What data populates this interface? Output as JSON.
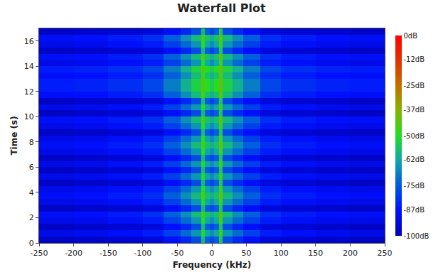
{
  "chart_data": {
    "type": "heatmap",
    "title": "Waterfall Plot",
    "x_label": "Frequency (kHz)",
    "y_label": "Time (s)",
    "x_bins": [
      -250,
      -200,
      -150,
      -100,
      -70,
      -45,
      -30,
      -15,
      -10,
      -3,
      3,
      10,
      15,
      30,
      45,
      70,
      100,
      150,
      200,
      250
    ],
    "y_bins": [
      0,
      0.5,
      1,
      1.5,
      2,
      2.5,
      3,
      3.5,
      4,
      4.5,
      5,
      5.5,
      6,
      6.5,
      7,
      7.5,
      8,
      8.5,
      9,
      9.5,
      10,
      10.5,
      11,
      11.5,
      12,
      12.5,
      13,
      13.5,
      14,
      14.5,
      15,
      15.5,
      16,
      16.5,
      17
    ],
    "z": [
      [
        -97,
        -96,
        -95,
        -93,
        -88,
        -83,
        -77,
        -58,
        -74,
        -78,
        -74,
        -55,
        -77,
        -83,
        -88,
        -93,
        -95,
        -96,
        -97
      ],
      [
        -91,
        -90,
        -88,
        -85,
        -79,
        -72,
        -65,
        -50,
        -62,
        -66,
        -62,
        -47,
        -65,
        -72,
        -79,
        -85,
        -88,
        -90,
        -91
      ],
      [
        -97,
        -96,
        -95,
        -93,
        -88,
        -83,
        -77,
        -58,
        -74,
        -78,
        -74,
        -55,
        -77,
        -83,
        -88,
        -93,
        -95,
        -96,
        -97
      ],
      [
        -91,
        -90,
        -88,
        -85,
        -79,
        -72,
        -65,
        -50,
        -62,
        -66,
        -62,
        -47,
        -65,
        -72,
        -79,
        -85,
        -88,
        -90,
        -91
      ],
      [
        -88,
        -87,
        -85,
        -82,
        -74,
        -66,
        -58,
        -46,
        -56,
        -60,
        -56,
        -43,
        -58,
        -66,
        -74,
        -82,
        -85,
        -87,
        -88
      ],
      [
        -97,
        -96,
        -95,
        -93,
        -88,
        -83,
        -77,
        -58,
        -74,
        -78,
        -74,
        -55,
        -77,
        -83,
        -88,
        -93,
        -95,
        -96,
        -97
      ],
      [
        -91,
        -90,
        -88,
        -85,
        -79,
        -72,
        -65,
        -50,
        -62,
        -66,
        -62,
        -47,
        -65,
        -72,
        -79,
        -85,
        -88,
        -90,
        -91
      ],
      [
        -88,
        -87,
        -85,
        -82,
        -74,
        -66,
        -58,
        -46,
        -56,
        -60,
        -56,
        -43,
        -58,
        -66,
        -74,
        -82,
        -85,
        -87,
        -88
      ],
      [
        -91,
        -90,
        -88,
        -85,
        -79,
        -72,
        -65,
        -50,
        -62,
        -66,
        -62,
        -47,
        -65,
        -72,
        -79,
        -85,
        -88,
        -90,
        -91
      ],
      [
        -97,
        -96,
        -95,
        -93,
        -88,
        -83,
        -77,
        -58,
        -74,
        -78,
        -74,
        -55,
        -77,
        -83,
        -88,
        -93,
        -95,
        -96,
        -97
      ],
      [
        -91,
        -90,
        -88,
        -85,
        -79,
        -72,
        -65,
        -50,
        -62,
        -66,
        -62,
        -47,
        -65,
        -72,
        -79,
        -85,
        -88,
        -90,
        -91
      ],
      [
        -97,
        -96,
        -95,
        -93,
        -88,
        -83,
        -77,
        -58,
        -74,
        -78,
        -74,
        -55,
        -77,
        -83,
        -88,
        -93,
        -95,
        -96,
        -97
      ],
      [
        -91,
        -90,
        -88,
        -85,
        -79,
        -72,
        -65,
        -50,
        -62,
        -66,
        -62,
        -47,
        -65,
        -72,
        -79,
        -85,
        -88,
        -90,
        -91
      ],
      [
        -97,
        -96,
        -95,
        -93,
        -88,
        -83,
        -77,
        -58,
        -74,
        -78,
        -74,
        -55,
        -77,
        -83,
        -88,
        -93,
        -95,
        -96,
        -97
      ],
      [
        -91,
        -90,
        -88,
        -85,
        -79,
        -72,
        -65,
        -50,
        -62,
        -66,
        -62,
        -47,
        -65,
        -72,
        -79,
        -85,
        -88,
        -90,
        -91
      ],
      [
        -88,
        -87,
        -85,
        -82,
        -74,
        -66,
        -58,
        -46,
        -56,
        -60,
        -56,
        -43,
        -58,
        -66,
        -74,
        -82,
        -85,
        -87,
        -88
      ],
      [
        -91,
        -90,
        -88,
        -85,
        -79,
        -72,
        -65,
        -50,
        -62,
        -66,
        -62,
        -47,
        -65,
        -72,
        -79,
        -85,
        -88,
        -90,
        -91
      ],
      [
        -97,
        -96,
        -95,
        -93,
        -88,
        -83,
        -77,
        -58,
        -74,
        -78,
        -74,
        -55,
        -77,
        -83,
        -88,
        -93,
        -95,
        -96,
        -97
      ],
      [
        -91,
        -90,
        -88,
        -85,
        -79,
        -72,
        -65,
        -50,
        -62,
        -66,
        -62,
        -47,
        -65,
        -72,
        -79,
        -85,
        -88,
        -90,
        -91
      ],
      [
        -88,
        -87,
        -85,
        -82,
        -74,
        -66,
        -58,
        -46,
        -56,
        -60,
        -56,
        -43,
        -58,
        -66,
        -74,
        -82,
        -85,
        -87,
        -88
      ],
      [
        -97,
        -96,
        -95,
        -93,
        -88,
        -83,
        -77,
        -58,
        -74,
        -78,
        -74,
        -55,
        -77,
        -83,
        -88,
        -93,
        -95,
        -96,
        -97
      ],
      [
        -91,
        -90,
        -88,
        -85,
        -79,
        -72,
        -65,
        -50,
        -62,
        -66,
        -62,
        -47,
        -65,
        -72,
        -79,
        -85,
        -88,
        -90,
        -91
      ],
      [
        -97,
        -96,
        -95,
        -93,
        -88,
        -83,
        -77,
        -58,
        -74,
        -78,
        -74,
        -55,
        -77,
        -83,
        -88,
        -93,
        -95,
        -96,
        -97
      ],
      [
        -88,
        -87,
        -85,
        -82,
        -74,
        -66,
        -58,
        -46,
        -56,
        -60,
        -56,
        -43,
        -58,
        -66,
        -74,
        -82,
        -85,
        -87,
        -88
      ],
      [
        -85,
        -84,
        -82,
        -78,
        -69,
        -60,
        -53,
        -44,
        -50,
        -54,
        -50,
        -41,
        -53,
        -60,
        -69,
        -78,
        -82,
        -84,
        -85
      ],
      [
        -85,
        -84,
        -82,
        -78,
        -69,
        -60,
        -53,
        -44,
        -50,
        -54,
        -50,
        -41,
        -53,
        -60,
        -69,
        -78,
        -82,
        -84,
        -85
      ],
      [
        -88,
        -87,
        -85,
        -82,
        -74,
        -66,
        -58,
        -46,
        -56,
        -60,
        -56,
        -43,
        -58,
        -66,
        -74,
        -82,
        -85,
        -87,
        -88
      ],
      [
        -85,
        -84,
        -82,
        -78,
        -69,
        -60,
        -53,
        -44,
        -50,
        -54,
        -50,
        -41,
        -53,
        -60,
        -69,
        -78,
        -82,
        -84,
        -85
      ],
      [
        -91,
        -90,
        -88,
        -85,
        -79,
        -72,
        -65,
        -50,
        -62,
        -66,
        -62,
        -47,
        -65,
        -72,
        -79,
        -85,
        -88,
        -90,
        -91
      ],
      [
        -88,
        -87,
        -85,
        -82,
        -74,
        -66,
        -58,
        -46,
        -56,
        -60,
        -56,
        -43,
        -58,
        -66,
        -74,
        -82,
        -85,
        -87,
        -88
      ],
      [
        -97,
        -96,
        -95,
        -93,
        -88,
        -83,
        -77,
        -58,
        -74,
        -78,
        -74,
        -55,
        -77,
        -83,
        -88,
        -93,
        -95,
        -96,
        -97
      ],
      [
        -91,
        -90,
        -88,
        -85,
        -79,
        -72,
        -65,
        -50,
        -62,
        -66,
        -62,
        -47,
        -65,
        -72,
        -79,
        -85,
        -88,
        -90,
        -91
      ],
      [
        -88,
        -87,
        -85,
        -82,
        -74,
        -66,
        -58,
        -46,
        -56,
        -60,
        -56,
        -43,
        -58,
        -66,
        -74,
        -82,
        -85,
        -87,
        -88
      ],
      [
        -97,
        -96,
        -95,
        -93,
        -88,
        -83,
        -77,
        -58,
        -74,
        -78,
        -74,
        -55,
        -77,
        -83,
        -88,
        -93,
        -95,
        -96,
        -97
      ]
    ],
    "xlim": [
      -250,
      250
    ],
    "ylim": [
      0,
      17
    ],
    "xticks": [
      -250,
      -200,
      -150,
      -100,
      -50,
      0,
      50,
      100,
      150,
      200,
      250
    ],
    "yticks": [
      0,
      2,
      4,
      6,
      8,
      10,
      12,
      14,
      16
    ],
    "colorbar_range": [
      -100,
      0
    ],
    "colorbar_ticks": [
      {
        "value": 0,
        "label": "0dB"
      },
      {
        "value": -12,
        "label": "-12dB"
      },
      {
        "value": -25,
        "label": "-25dB"
      },
      {
        "value": -37,
        "label": "-37dB"
      },
      {
        "value": -50,
        "label": "-50dB"
      },
      {
        "value": -62,
        "label": "-62dB"
      },
      {
        "value": -75,
        "label": "-75dB"
      },
      {
        "value": -87,
        "label": "-87dB"
      },
      {
        "value": -100,
        "label": "-100dB"
      }
    ],
    "grid": false
  }
}
